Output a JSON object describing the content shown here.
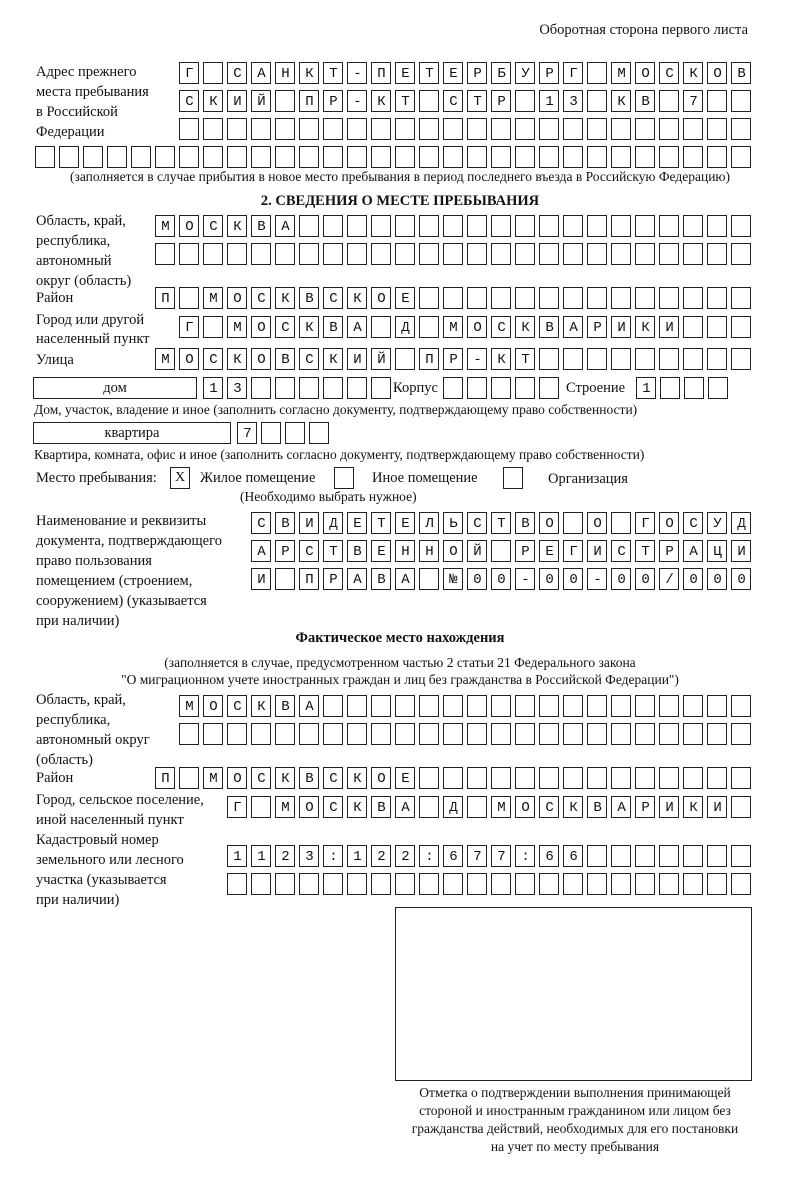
{
  "header": "Оборотная сторона первого листа",
  "previous_address": {
    "label": [
      "Адрес прежнего",
      "места пребывания",
      "в Российской",
      "Федерации"
    ],
    "rows": [
      "Г САНКТ-ПЕТЕРБУРГ МОСКОВ",
      "СКИЙ ПР-КТ СТР 13 КВ 7  ",
      "",
      ""
    ],
    "note": "(заполняется в случае прибытия в новое место пребывания в период последнего въезда в Российскую Федерацию)"
  },
  "section2": {
    "title": "2. СВЕДЕНИЯ О МЕСТЕ ПРЕБЫВАНИЯ",
    "region_label": [
      "Область, край,",
      "республика,",
      "автономный",
      "округ (область)"
    ],
    "region_rows": [
      "МОСКВА",
      ""
    ],
    "district_label": "Район",
    "district": "П МОСКВСКОЕ",
    "city_label": [
      "Город или другой",
      "населенный пункт"
    ],
    "city": "Г МОСКВА Д МОСКВАРИКИ",
    "street_label": "Улица",
    "street": "МОСКОВСКИЙ ПР-КТ",
    "house_type": "дом",
    "house_number": "13",
    "korpus_label": "Корпус",
    "korpus": "",
    "building_label": "Строение",
    "building": "1",
    "house_caption": "Дом, участок, владение и иное (заполнить согласно документу, подтверждающему право собственности)",
    "flat_type": "квартира",
    "flat_number": "7",
    "flat_caption": "Квартира, комната, офис и иное (заполнить согласно документу, подтверждающему право собственности)",
    "place_label": "Место пребывания:",
    "place_options": [
      {
        "label": "Жилое помещение",
        "mark": "Х",
        "checked": true
      },
      {
        "label": "Иное помещение",
        "mark": "",
        "checked": false
      },
      {
        "label": "Организация",
        "mark": "",
        "checked": false
      }
    ],
    "place_hint": "(Необходимо выбрать нужное)",
    "doc_label": [
      "Наименование и реквизиты",
      "документа, подтверждающего",
      "право пользования",
      "помещением (строением,",
      "сооружением) (указывается",
      "при наличии)"
    ],
    "doc_rows": [
      "СВИДЕТЕЛЬСТВО О ГОСУД",
      "АРСТВЕННОЙ РЕГИСТРАЦИ",
      "И ПРАВА №00-00-00/000"
    ]
  },
  "actual": {
    "title": "Фактическое место нахождения",
    "note": [
      "(заполняется в случае, предусмотренном частью 2 статьи 21 Федерального закона",
      "\"О миграционном учете иностранных граждан и лиц без гражданства в Российской Федерации\")"
    ],
    "region_label": [
      "Область, край,",
      "республика,",
      "автономный округ",
      "(область)"
    ],
    "region_rows": [
      "МОСКВА",
      ""
    ],
    "district_label": "Район",
    "district": "П МОСКВСКОЕ",
    "city_label": [
      "Город, сельское поселение,",
      "иной населенный пункт"
    ],
    "city": "Г МОСКВА Д МОСКВАРИКИ",
    "cadastre_label": [
      "Кадастровый номер",
      "земельного или лесного",
      "участка (указывается",
      "при наличии)"
    ],
    "cadastre_rows": [
      "1123:122:677:66",
      ""
    ]
  },
  "confirmation_caption": [
    "Отметка о подтверждении выполнения принимающей",
    "стороной и иностранным гражданином или лицом без",
    "гражданства действий, необходимых для его постановки",
    "на учет по месту пребывания"
  ]
}
